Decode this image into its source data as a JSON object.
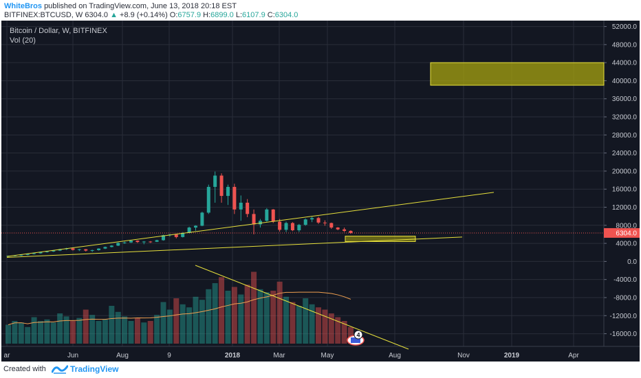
{
  "header": {
    "author": "WhiteBros",
    "published_text": "published on TradingView.com, June 13, 2018 20:18 EST",
    "symbol": "BITFINEX:BTCUSD, W",
    "last_price": "6304.0",
    "change": "+8.9 (+0.14%)",
    "o_label": "O:",
    "o_value": "6757.9",
    "h_label": "H:",
    "h_value": "6899.0",
    "l_label": "L:",
    "l_value": "6107.9",
    "c_label": "C:",
    "c_value": "6304.0"
  },
  "legend": {
    "title": "Bitcoin / Dollar, W, BITFINEX",
    "volume": "Vol (20)"
  },
  "footer": {
    "created_with": "Created with",
    "brand": "TradingView"
  },
  "colors": {
    "background": "#131722",
    "bull": "#26a69a",
    "bear": "#ef5350",
    "trendline": "#e8e13c",
    "grid": "#2a2e39",
    "price_label": "#ef5350"
  },
  "chart_data": {
    "type": "candlestick",
    "x_ticks": [
      "ar",
      "Jun",
      "Aug",
      "9",
      "2018",
      "Mar",
      "May",
      "Aug",
      "Nov",
      "2019",
      "Apr"
    ],
    "y_ticks": [
      "52000.0",
      "48000.0",
      "44000.0",
      "40000.0",
      "36000.0",
      "32000.0",
      "28000.0",
      "24000.0",
      "20000.0",
      "16000.0",
      "12000.0",
      "8000.0",
      "4000.0",
      "0.0",
      "-4000.0",
      "-8000.0",
      "-12000.0",
      "-16000.0"
    ],
    "ylim": [
      -18500,
      53000
    ],
    "current_price": 6304.0,
    "current_price_label": "6304.0",
    "candles": [
      [
        1100,
        1300,
        1000,
        1250
      ],
      [
        1250,
        1400,
        1150,
        1350
      ],
      [
        1350,
        1500,
        1200,
        1450
      ],
      [
        1450,
        1700,
        1350,
        1650
      ],
      [
        1650,
        1900,
        1550,
        1800
      ],
      [
        1800,
        2100,
        1700,
        2050
      ],
      [
        2050,
        2300,
        1950,
        2200
      ],
      [
        2200,
        2500,
        2100,
        2400
      ],
      [
        2400,
        2800,
        2300,
        2700
      ],
      [
        2700,
        3000,
        2550,
        2900
      ],
      [
        2900,
        3000,
        2400,
        2550
      ],
      [
        2550,
        2800,
        2300,
        2700
      ],
      [
        2700,
        2750,
        2200,
        2400
      ],
      [
        2400,
        2600,
        2100,
        2500
      ],
      [
        2500,
        2900,
        2400,
        2850
      ],
      [
        2850,
        3300,
        2750,
        3200
      ],
      [
        3200,
        3600,
        3100,
        3500
      ],
      [
        3500,
        4200,
        3400,
        4100
      ],
      [
        4100,
        4400,
        3900,
        4200
      ],
      [
        4200,
        4700,
        4100,
        4600
      ],
      [
        4600,
        4650,
        4100,
        4300
      ],
      [
        4300,
        4500,
        3800,
        4400
      ],
      [
        4400,
        4500,
        4100,
        4350
      ],
      [
        4350,
        4800,
        4300,
        4700
      ],
      [
        4700,
        5900,
        4600,
        5800
      ],
      [
        5800,
        6100,
        5500,
        5950
      ],
      [
        5950,
        6000,
        5100,
        5400
      ],
      [
        5400,
        6500,
        5300,
        6300
      ],
      [
        6300,
        7700,
        6200,
        7500
      ],
      [
        7500,
        8000,
        6800,
        7900
      ],
      [
        7900,
        11000,
        7800,
        10800
      ],
      [
        10800,
        17000,
        10500,
        16500
      ],
      [
        16500,
        19900,
        13000,
        19000
      ],
      [
        19000,
        19500,
        13000,
        14500
      ],
      [
        14500,
        17000,
        12500,
        16500
      ],
      [
        16500,
        17200,
        10500,
        11500
      ],
      [
        11500,
        14600,
        9000,
        13000
      ],
      [
        13000,
        13800,
        9800,
        10500
      ],
      [
        10500,
        11500,
        6000,
        8200
      ],
      [
        8200,
        9400,
        7500,
        9000
      ],
      [
        9000,
        11800,
        8800,
        11500
      ],
      [
        11500,
        11600,
        8500,
        8800
      ],
      [
        8800,
        9400,
        6600,
        7000
      ],
      [
        7000,
        8800,
        6500,
        8500
      ],
      [
        8500,
        8700,
        6700,
        6900
      ],
      [
        6900,
        8300,
        6500,
        8100
      ],
      [
        8100,
        9500,
        7900,
        9300
      ],
      [
        9300,
        9900,
        8700,
        9600
      ],
      [
        9600,
        9900,
        8300,
        8600
      ],
      [
        8600,
        9100,
        7900,
        8500
      ],
      [
        8500,
        8600,
        7200,
        7500
      ],
      [
        7500,
        7600,
        6900,
        7100
      ],
      [
        7100,
        7500,
        6500,
        6758
      ],
      [
        6758,
        6899,
        6108,
        6304
      ]
    ],
    "volume_scale_ticks": [
      "-8000.0",
      "-12000.0",
      "-16000.0"
    ],
    "volume_relative": [
      0.25,
      0.3,
      0.28,
      0.22,
      0.35,
      0.3,
      0.32,
      0.28,
      0.4,
      0.36,
      0.3,
      0.34,
      0.45,
      0.38,
      0.3,
      0.32,
      0.5,
      0.42,
      0.36,
      0.3,
      0.34,
      0.28,
      0.3,
      0.38,
      0.55,
      0.45,
      0.6,
      0.52,
      0.48,
      0.62,
      0.58,
      0.72,
      0.8,
      0.88,
      0.7,
      0.75,
      0.65,
      0.78,
      0.95,
      0.72,
      0.68,
      0.7,
      0.82,
      0.62,
      0.55,
      0.5,
      0.6,
      0.52,
      0.48,
      0.45,
      0.4,
      0.35,
      0.3,
      0.22
    ],
    "annotations": [
      {
        "type": "target-zone",
        "from_price": 39000,
        "to_price": 44000
      },
      {
        "type": "support-zone",
        "from_price": 4400,
        "to_price": 5600
      },
      {
        "type": "trendline-upper",
        "from_price": 1100,
        "to_price": 15300
      },
      {
        "type": "trendline-lower",
        "from_price": 900,
        "to_price": 5400
      },
      {
        "type": "volume-downtrend"
      }
    ]
  }
}
